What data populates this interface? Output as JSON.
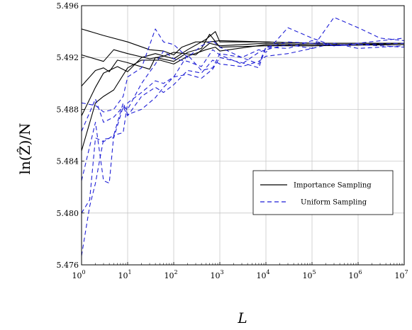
{
  "chart_data": {
    "type": "line",
    "xscale": "log",
    "xlim": [
      1,
      10000000
    ],
    "ylim": [
      5.476,
      5.496
    ],
    "xlabel": "L",
    "ylabel": "ln(Ẑ)/N",
    "x_ticks": [
      {
        "value": 1,
        "base": "10",
        "exp": "0"
      },
      {
        "value": 10,
        "base": "10",
        "exp": "1"
      },
      {
        "value": 100,
        "base": "10",
        "exp": "2"
      },
      {
        "value": 1000,
        "base": "10",
        "exp": "3"
      },
      {
        "value": 10000,
        "base": "10",
        "exp": "4"
      },
      {
        "value": 100000,
        "base": "10",
        "exp": "5"
      },
      {
        "value": 1000000,
        "base": "10",
        "exp": "6"
      },
      {
        "value": 10000000,
        "base": "10",
        "exp": "7"
      }
    ],
    "y_ticks": [
      "5.476",
      "5.480",
      "5.484",
      "5.488",
      "5.492",
      "5.496"
    ],
    "grid": true,
    "legend": {
      "position": "center-right",
      "entries": [
        {
          "label": "Importance Sampling",
          "color": "#000000",
          "dash": "solid"
        },
        {
          "label": "Uniform Sampling",
          "color": "#1f1fd6",
          "dash": "dashed"
        }
      ]
    },
    "series": [
      {
        "group": "importance",
        "color": "#000000",
        "dash": "solid",
        "points": [
          [
            1,
            5.4942
          ],
          [
            3,
            5.4937
          ],
          [
            10,
            5.4932
          ],
          [
            30,
            5.4926
          ],
          [
            60,
            5.4925
          ],
          [
            100,
            5.4922
          ],
          [
            150,
            5.4928
          ],
          [
            300,
            5.4932
          ],
          [
            600,
            5.4932
          ],
          [
            1000,
            5.4933
          ],
          [
            10000,
            5.4932
          ],
          [
            100000,
            5.4931
          ],
          [
            1000000,
            5.4931
          ],
          [
            10000000,
            5.4931
          ]
        ]
      },
      {
        "group": "importance",
        "color": "#000000",
        "dash": "solid",
        "points": [
          [
            1,
            5.4922
          ],
          [
            3,
            5.4917
          ],
          [
            5,
            5.4926
          ],
          [
            10,
            5.4923
          ],
          [
            30,
            5.4919
          ],
          [
            60,
            5.4921
          ],
          [
            100,
            5.4924
          ],
          [
            300,
            5.4922
          ],
          [
            600,
            5.4931
          ],
          [
            1000,
            5.4929
          ],
          [
            10000,
            5.4931
          ],
          [
            100000,
            5.493
          ],
          [
            1000000,
            5.493
          ],
          [
            10000000,
            5.4931
          ]
        ]
      },
      {
        "group": "importance",
        "color": "#000000",
        "dash": "solid",
        "points": [
          [
            1,
            5.4898
          ],
          [
            2,
            5.491
          ],
          [
            3,
            5.4912
          ],
          [
            4,
            5.4909
          ],
          [
            6,
            5.4918
          ],
          [
            10,
            5.4916
          ],
          [
            30,
            5.4911
          ],
          [
            40,
            5.492
          ],
          [
            100,
            5.4917
          ],
          [
            200,
            5.4924
          ],
          [
            400,
            5.4927
          ],
          [
            600,
            5.4938
          ],
          [
            1000,
            5.4928
          ],
          [
            10000,
            5.4929
          ],
          [
            100000,
            5.4929
          ],
          [
            10000000,
            5.493
          ]
        ]
      },
      {
        "group": "importance",
        "color": "#000000",
        "dash": "solid",
        "points": [
          [
            1,
            5.4848
          ],
          [
            2,
            5.4885
          ],
          [
            3,
            5.489
          ],
          [
            5,
            5.4895
          ],
          [
            10,
            5.4912
          ],
          [
            20,
            5.4918
          ],
          [
            50,
            5.4918
          ],
          [
            100,
            5.4915
          ],
          [
            200,
            5.4921
          ],
          [
            500,
            5.4926
          ],
          [
            800,
            5.4928
          ],
          [
            1000,
            5.4925
          ],
          [
            10000,
            5.493
          ],
          [
            100000,
            5.4929
          ],
          [
            1000000,
            5.493
          ],
          [
            10000000,
            5.493
          ]
        ]
      },
      {
        "group": "importance",
        "color": "#000000",
        "dash": "solid",
        "points": [
          [
            1,
            5.4875
          ],
          [
            2,
            5.4897
          ],
          [
            3,
            5.4908
          ],
          [
            6,
            5.4913
          ],
          [
            10,
            5.4909
          ],
          [
            20,
            5.492
          ],
          [
            40,
            5.4923
          ],
          [
            100,
            5.4919
          ],
          [
            200,
            5.4926
          ],
          [
            500,
            5.4934
          ],
          [
            800,
            5.494
          ],
          [
            1000,
            5.4932
          ],
          [
            10000,
            5.4932
          ],
          [
            100000,
            5.4931
          ],
          [
            10000000,
            5.4931
          ]
        ]
      },
      {
        "group": "uniform",
        "color": "#1f1fd6",
        "dash": "dashed",
        "points": [
          [
            1,
            5.4767
          ],
          [
            1.5,
            5.4805
          ],
          [
            2,
            5.4823
          ],
          [
            3,
            5.4857
          ],
          [
            5,
            5.4858
          ],
          [
            8,
            5.4882
          ],
          [
            10,
            5.4875
          ],
          [
            20,
            5.489
          ],
          [
            40,
            5.4897
          ],
          [
            60,
            5.4893
          ],
          [
            100,
            5.4899
          ],
          [
            200,
            5.491
          ],
          [
            400,
            5.4908
          ],
          [
            700,
            5.4918
          ],
          [
            1000,
            5.4915
          ],
          [
            3000,
            5.4913
          ],
          [
            7000,
            5.4917
          ],
          [
            10000,
            5.4921
          ],
          [
            30000,
            5.4923
          ],
          [
            100000,
            5.4927
          ],
          [
            300000,
            5.4931
          ],
          [
            1000000,
            5.4927
          ],
          [
            3000000,
            5.4928
          ],
          [
            10000000,
            5.4929
          ]
        ]
      },
      {
        "group": "uniform",
        "color": "#1f1fd6",
        "dash": "dashed",
        "points": [
          [
            1,
            5.48
          ],
          [
            1.5,
            5.481
          ],
          [
            2,
            5.4858
          ],
          [
            3,
            5.4855
          ],
          [
            5,
            5.486
          ],
          [
            8,
            5.4885
          ],
          [
            10,
            5.4876
          ],
          [
            20,
            5.488
          ],
          [
            40,
            5.4889
          ],
          [
            60,
            5.4897
          ],
          [
            100,
            5.4905
          ],
          [
            200,
            5.4907
          ],
          [
            400,
            5.4904
          ],
          [
            700,
            5.4911
          ],
          [
            1000,
            5.492
          ],
          [
            3000,
            5.4916
          ],
          [
            7000,
            5.4912
          ],
          [
            10000,
            5.4928
          ],
          [
            30000,
            5.4932
          ],
          [
            100000,
            5.4931
          ],
          [
            300000,
            5.4929
          ],
          [
            1000000,
            5.493
          ],
          [
            10000000,
            5.4928
          ]
        ]
      },
      {
        "group": "uniform",
        "color": "#1f1fd6",
        "dash": "dashed",
        "points": [
          [
            1,
            5.4825
          ],
          [
            2,
            5.487
          ],
          [
            3,
            5.4825
          ],
          [
            4,
            5.4823
          ],
          [
            5,
            5.486
          ],
          [
            8,
            5.4862
          ],
          [
            10,
            5.4885
          ],
          [
            20,
            5.4893
          ],
          [
            40,
            5.4902
          ],
          [
            60,
            5.49
          ],
          [
            100,
            5.4905
          ],
          [
            200,
            5.4922
          ],
          [
            400,
            5.491
          ],
          [
            700,
            5.4912
          ],
          [
            1000,
            5.4923
          ],
          [
            3000,
            5.492
          ],
          [
            7000,
            5.4926
          ],
          [
            10000,
            5.4924
          ],
          [
            30000,
            5.4943
          ],
          [
            100000,
            5.4935
          ],
          [
            300000,
            5.4929
          ],
          [
            1000000,
            5.4931
          ],
          [
            10000000,
            5.4935
          ]
        ]
      },
      {
        "group": "uniform",
        "color": "#1f1fd6",
        "dash": "dashed",
        "points": [
          [
            1,
            5.4863
          ],
          [
            2,
            5.4888
          ],
          [
            3,
            5.487
          ],
          [
            5,
            5.4874
          ],
          [
            8,
            5.4882
          ],
          [
            10,
            5.488
          ],
          [
            20,
            5.49
          ],
          [
            40,
            5.4915
          ],
          [
            60,
            5.4925
          ],
          [
            100,
            5.4919
          ],
          [
            200,
            5.4917
          ],
          [
            400,
            5.4913
          ],
          [
            700,
            5.4926
          ],
          [
            1000,
            5.4922
          ],
          [
            3000,
            5.4915
          ],
          [
            7000,
            5.4924
          ],
          [
            10000,
            5.4926
          ],
          [
            30000,
            5.493
          ],
          [
            100000,
            5.4927
          ],
          [
            300000,
            5.4951
          ],
          [
            1000000,
            5.4943
          ],
          [
            3000000,
            5.4935
          ],
          [
            10000000,
            5.4933
          ]
        ]
      },
      {
        "group": "uniform",
        "color": "#1f1fd6",
        "dash": "dashed",
        "points": [
          [
            1,
            5.4885
          ],
          [
            2,
            5.4883
          ],
          [
            3,
            5.4878
          ],
          [
            5,
            5.488
          ],
          [
            8,
            5.489
          ],
          [
            10,
            5.4905
          ],
          [
            20,
            5.4912
          ],
          [
            40,
            5.4942
          ],
          [
            60,
            5.4932
          ],
          [
            100,
            5.493
          ],
          [
            200,
            5.492
          ],
          [
            400,
            5.4929
          ],
          [
            700,
            5.4933
          ],
          [
            1000,
            5.4928
          ],
          [
            3000,
            5.492
          ],
          [
            7000,
            5.4915
          ],
          [
            10000,
            5.4928
          ],
          [
            30000,
            5.4927
          ],
          [
            100000,
            5.4933
          ],
          [
            300000,
            5.4929
          ],
          [
            1000000,
            5.493
          ],
          [
            10000000,
            5.4931
          ]
        ]
      }
    ]
  }
}
